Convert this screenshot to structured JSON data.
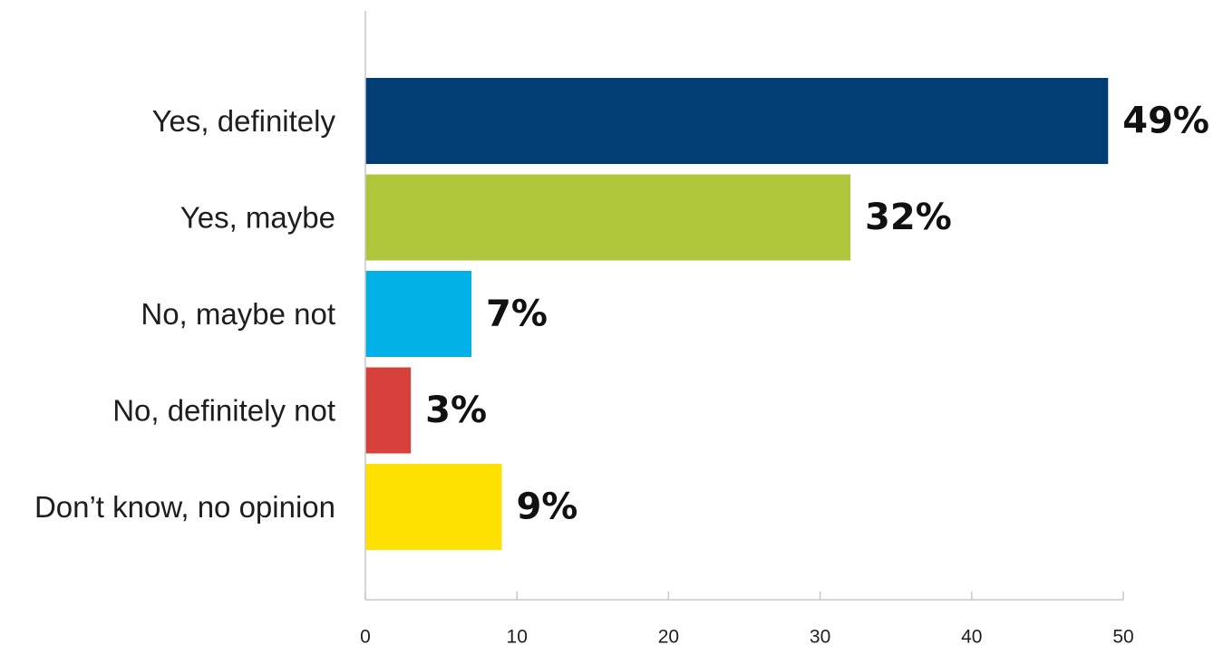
{
  "chart_data": {
    "type": "bar",
    "orientation": "horizontal",
    "categories": [
      "Yes, definitely",
      "Yes, maybe",
      "No, maybe not",
      "No, definitely not",
      "Don’t know, no opinion"
    ],
    "values": [
      49,
      32,
      7,
      3,
      9
    ],
    "value_labels": [
      "49%",
      "32%",
      "7%",
      "3%",
      "9%"
    ],
    "colors": [
      "#003e74",
      "#afc53a",
      "#00b0e6",
      "#d6413b",
      "#ffe100"
    ],
    "xlim": [
      0,
      50
    ],
    "xticks": [
      0,
      10,
      20,
      30,
      40,
      50
    ],
    "title": "",
    "xlabel": "",
    "ylabel": "",
    "grid": false,
    "legend": "none"
  }
}
